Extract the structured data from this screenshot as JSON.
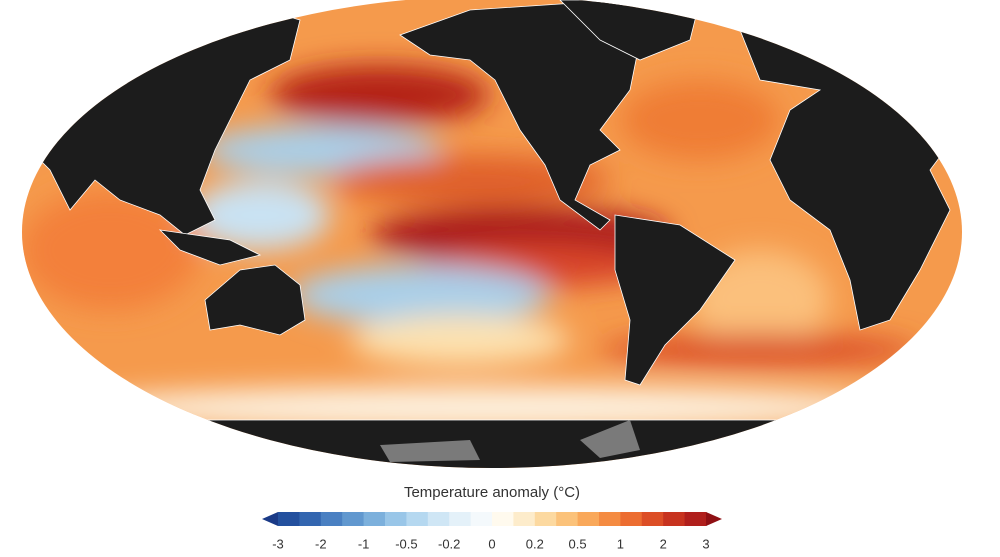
{
  "legend": {
    "title": "Temperature anomaly (°C)",
    "ticks": [
      -3,
      -2,
      -1,
      -0.5,
      -0.2,
      0,
      0.2,
      0.5,
      1,
      2,
      3
    ],
    "colors": [
      "#1a3a87",
      "#23509e",
      "#3366b0",
      "#4a80c2",
      "#6198cf",
      "#7cb0dc",
      "#99c6e8",
      "#b5d8f0",
      "#cfe6f5",
      "#e4f1f9",
      "#f4f9fc",
      "#fffaee",
      "#fdeccb",
      "#fcd9a0",
      "#fbc27a",
      "#f9a85a",
      "#f48b42",
      "#ec6d31",
      "#dc4e26",
      "#c7331f",
      "#b01f1c",
      "#8f1014"
    ]
  }
}
